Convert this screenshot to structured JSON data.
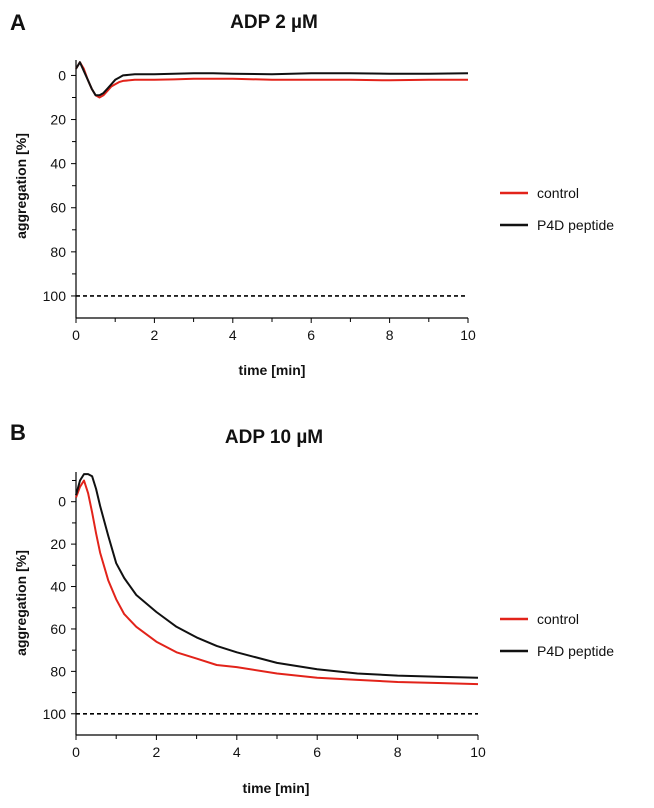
{
  "figure": {
    "panels": [
      "A",
      "B"
    ]
  },
  "chart_data": [
    {
      "type": "line",
      "panel": "A",
      "title": "ADP 2 µM",
      "xlabel": "time [min]",
      "ylabel": "aggregation [%]",
      "xlim": [
        0,
        10
      ],
      "ylim": [
        -7,
        110
      ],
      "y_inverted": true,
      "xticks": [
        0,
        2,
        4,
        6,
        8,
        10
      ],
      "yticks": [
        0,
        20,
        40,
        60,
        80,
        100
      ],
      "grid": false,
      "legend_position": "right",
      "reference_line": {
        "y": 100,
        "style": "dashed",
        "color": "#000000"
      },
      "series": [
        {
          "name": "control",
          "color": "#e2231a",
          "x": [
            0,
            0.1,
            0.2,
            0.3,
            0.4,
            0.5,
            0.6,
            0.7,
            0.8,
            0.9,
            1.0,
            1.1,
            1.2,
            1.5,
            2,
            2.5,
            3,
            3.5,
            4,
            5,
            6,
            7,
            8,
            9,
            10
          ],
          "y": [
            -3,
            -6,
            -3,
            2,
            6,
            9,
            10,
            9,
            7,
            5,
            4,
            3,
            2.5,
            2,
            2,
            1.8,
            1.5,
            1.5,
            1.5,
            2,
            2,
            2,
            2.2,
            2,
            2
          ]
        },
        {
          "name": "P4D peptide",
          "color": "#111111",
          "x": [
            0,
            0.1,
            0.2,
            0.3,
            0.4,
            0.5,
            0.6,
            0.7,
            0.8,
            0.9,
            1.0,
            1.1,
            1.2,
            1.5,
            2,
            2.5,
            3,
            3.5,
            4,
            5,
            6,
            7,
            8,
            9,
            10
          ],
          "y": [
            -3,
            -6,
            -2,
            2,
            6,
            9,
            9,
            8,
            6,
            4,
            2,
            1,
            0,
            -0.5,
            -0.5,
            -0.8,
            -1,
            -1,
            -0.8,
            -0.5,
            -1,
            -1,
            -0.8,
            -0.8,
            -1
          ]
        }
      ]
    },
    {
      "type": "line",
      "panel": "B",
      "title": "ADP 10 µM",
      "xlabel": "time [min]",
      "ylabel": "aggregation [%]",
      "xlim": [
        0,
        10
      ],
      "ylim": [
        -14,
        110
      ],
      "y_inverted": true,
      "xticks": [
        0,
        2,
        4,
        6,
        8,
        10
      ],
      "yticks": [
        0,
        20,
        40,
        60,
        80,
        100
      ],
      "grid": false,
      "legend_position": "right",
      "reference_line": {
        "y": 100,
        "style": "dashed",
        "color": "#000000"
      },
      "series": [
        {
          "name": "control",
          "color": "#e2231a",
          "x": [
            0,
            0.1,
            0.2,
            0.3,
            0.4,
            0.5,
            0.6,
            0.8,
            1.0,
            1.2,
            1.5,
            2,
            2.5,
            3,
            3.5,
            4,
            5,
            6,
            7,
            8,
            9,
            10
          ],
          "y": [
            -2,
            -7,
            -10,
            -4,
            5,
            15,
            24,
            37,
            46,
            53,
            59,
            66,
            71,
            74,
            77,
            78,
            81,
            83,
            84,
            85,
            85.5,
            86
          ]
        },
        {
          "name": "P4D peptide",
          "color": "#111111",
          "x": [
            0,
            0.1,
            0.2,
            0.3,
            0.4,
            0.5,
            0.6,
            0.8,
            1.0,
            1.2,
            1.5,
            2,
            2.5,
            3,
            3.5,
            4,
            5,
            6,
            7,
            8,
            9,
            10
          ],
          "y": [
            -3,
            -10,
            -13,
            -13,
            -12,
            -6,
            2,
            16,
            29,
            36,
            44,
            52,
            59,
            64,
            68,
            71,
            76,
            79,
            81,
            82,
            82.5,
            83
          ]
        }
      ]
    }
  ]
}
